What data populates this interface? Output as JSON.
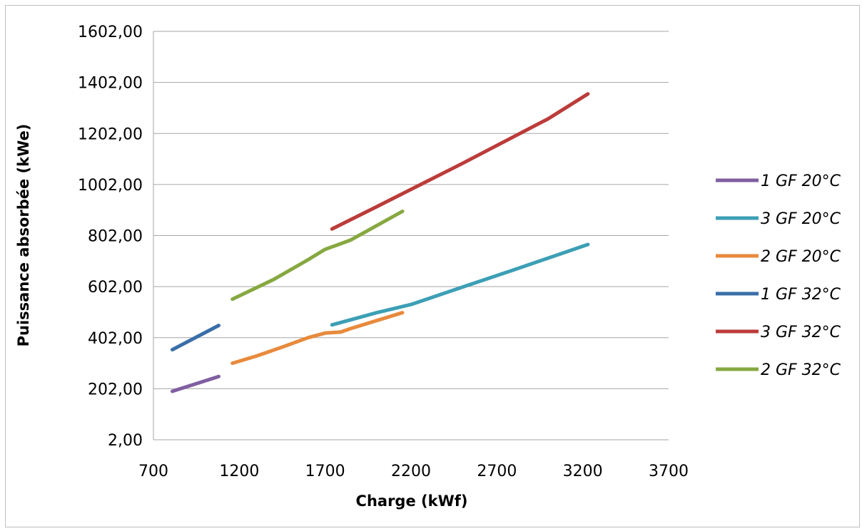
{
  "chart_data": {
    "type": "line",
    "title": "",
    "xlabel": "Charge (kWf)",
    "ylabel": "Puissance absorbée (kWe)",
    "xlim": [
      700,
      3700
    ],
    "ylim": [
      2,
      1602
    ],
    "xticks": [
      "700",
      "1200",
      "1700",
      "2200",
      "2700",
      "3200",
      "3700"
    ],
    "yticks": [
      "2,00",
      "202,00",
      "402,00",
      "602,00",
      "802,00",
      "1002,00",
      "1202,00",
      "1402,00",
      "1602,00"
    ],
    "xtick_values": [
      700,
      1200,
      1700,
      2200,
      2700,
      3200,
      3700
    ],
    "ytick_values": [
      2,
      202,
      402,
      602,
      802,
      1002,
      1202,
      1402,
      1602
    ],
    "grid": "horizontal",
    "legend_position": "right",
    "series": [
      {
        "name": "1 GF 20°C",
        "color": "#7f5fa0",
        "points": [
          [
            810,
            192
          ],
          [
            1080,
            250
          ]
        ]
      },
      {
        "name": "3 GF 20°C",
        "color": "#3c9fb5",
        "points": [
          [
            1740,
            452
          ],
          [
            2000,
            500
          ],
          [
            2200,
            532
          ],
          [
            2500,
            600
          ],
          [
            2800,
            668
          ],
          [
            3230,
            767
          ]
        ]
      },
      {
        "name": "2 GF 20°C",
        "color": "#e88a3c",
        "points": [
          [
            1160,
            302
          ],
          [
            1300,
            330
          ],
          [
            1450,
            365
          ],
          [
            1600,
            402
          ],
          [
            1700,
            420
          ],
          [
            1790,
            424
          ],
          [
            1850,
            438
          ],
          [
            2150,
            500
          ]
        ]
      },
      {
        "name": "1 GF 32°C",
        "color": "#3a6ea8",
        "points": [
          [
            810,
            355
          ],
          [
            1080,
            450
          ]
        ]
      },
      {
        "name": "3 GF 32°C",
        "color": "#bb3c3a",
        "points": [
          [
            1740,
            828
          ],
          [
            2000,
            915
          ],
          [
            2500,
            1085
          ],
          [
            3000,
            1260
          ],
          [
            3230,
            1357
          ]
        ]
      },
      {
        "name": "2 GF 32°C",
        "color": "#86a840",
        "points": [
          [
            1160,
            553
          ],
          [
            1400,
            630
          ],
          [
            1600,
            707
          ],
          [
            1700,
            748
          ],
          [
            1790,
            770
          ],
          [
            1850,
            785
          ],
          [
            2150,
            897
          ]
        ]
      }
    ]
  }
}
